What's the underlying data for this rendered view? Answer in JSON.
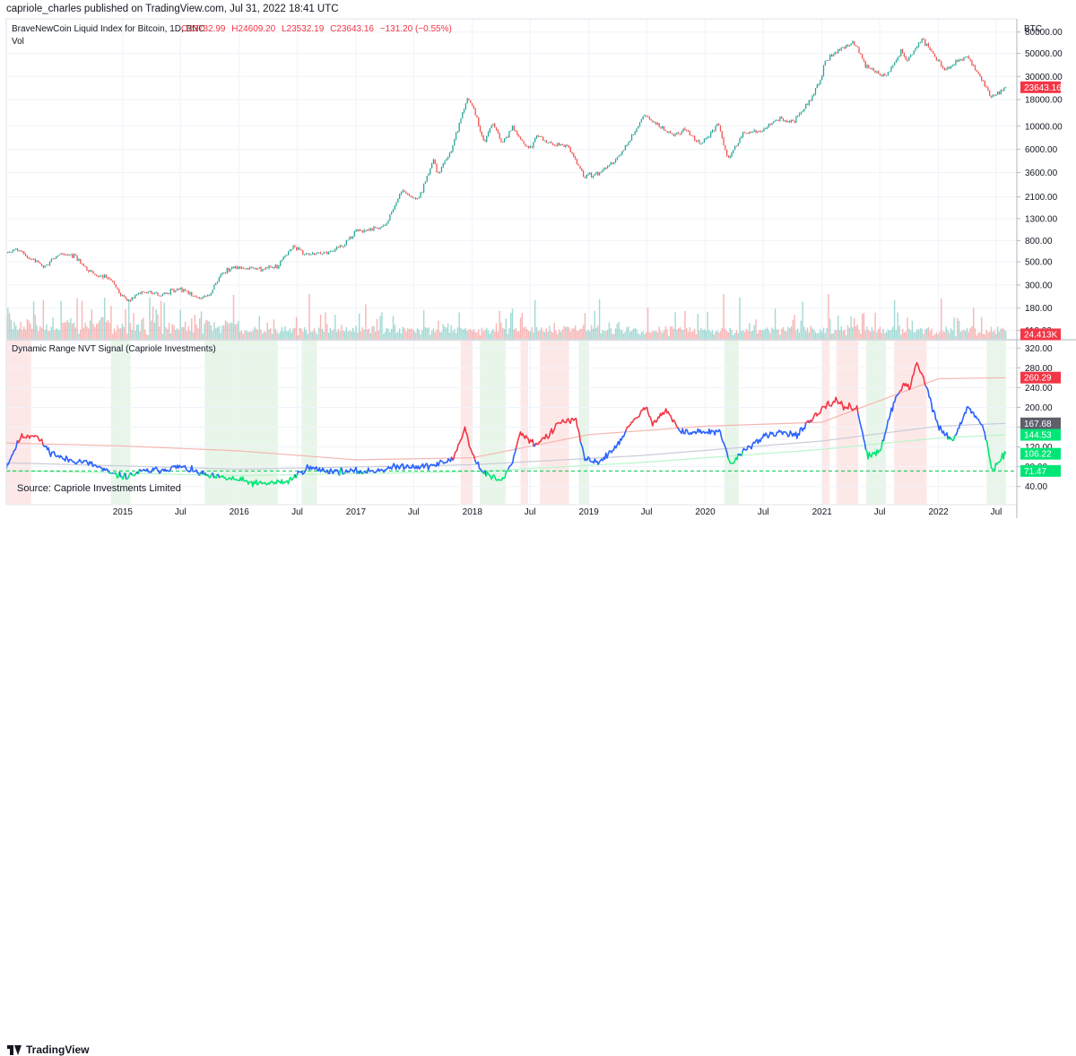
{
  "header": {
    "published": "capriole_charles published on TradingView.com, Jul 31, 2022 18:41 UTC"
  },
  "footer": {
    "logo_text": "TradingView"
  },
  "colors": {
    "up": "#26a69a",
    "down": "#ef5350",
    "ind_blue": "#2962ff",
    "ind_red": "#f23645",
    "ind_green": "#00e676",
    "buy_zone": "#e8f5e9",
    "sell_zone": "#fde8e8"
  },
  "chart_data": [
    {
      "type": "line",
      "chart_style": "candlestick",
      "scale": "log",
      "legend": {
        "symbol": "BraveNewCoin Liquid Index for Bitcoin, 1D, BNC",
        "open": "O23782.99",
        "high": "H24609.20",
        "low": "L23532.19",
        "close": "C23643.16",
        "change": "−131.20 (−0.55%)",
        "volume_label": "Vol"
      },
      "axis_unit": "BTC",
      "y_ticks": [
        80000,
        50000,
        30000,
        18000,
        10000,
        6000,
        3600,
        2100,
        1300,
        800,
        500,
        300,
        180,
        110
      ],
      "y_tick_labels": [
        "80000.00",
        "50000.00",
        "30000.00",
        "18000.00",
        "10000.00",
        "6000.00",
        "3600.00",
        "2100.00",
        "1300.00",
        "800.00",
        "500.00",
        "300.00",
        "180.00",
        "110.00"
      ],
      "ylim": [
        95,
        105000
      ],
      "price_badge": {
        "value": 23643.16,
        "label": "23643.16"
      },
      "volume_badge": {
        "label": "24.413K"
      },
      "price_series": [
        [
          "2014-01-01",
          600
        ],
        [
          "2014-02-01",
          660
        ],
        [
          "2014-03-15",
          540
        ],
        [
          "2014-05-01",
          450
        ],
        [
          "2014-06-15",
          600
        ],
        [
          "2014-08-01",
          580
        ],
        [
          "2014-10-01",
          380
        ],
        [
          "2014-11-15",
          360
        ],
        [
          "2015-01-15",
          210
        ],
        [
          "2015-03-01",
          260
        ],
        [
          "2015-05-01",
          240
        ],
        [
          "2015-07-01",
          280
        ],
        [
          "2015-08-20",
          230
        ],
        [
          "2015-10-01",
          240
        ],
        [
          "2015-11-05",
          390
        ],
        [
          "2015-12-15",
          440
        ],
        [
          "2016-03-01",
          430
        ],
        [
          "2016-05-01",
          450
        ],
        [
          "2016-06-15",
          720
        ],
        [
          "2016-08-01",
          580
        ],
        [
          "2016-10-01",
          620
        ],
        [
          "2016-12-01",
          760
        ],
        [
          "2017-01-05",
          1000
        ],
        [
          "2017-02-15",
          1000
        ],
        [
          "2017-04-01",
          1080
        ],
        [
          "2017-05-25",
          2400
        ],
        [
          "2017-07-15",
          1950
        ],
        [
          "2017-09-01",
          4800
        ],
        [
          "2017-09-15",
          3400
        ],
        [
          "2017-11-01",
          6500
        ],
        [
          "2017-12-17",
          19500
        ],
        [
          "2018-01-15",
          12000
        ],
        [
          "2018-02-06",
          7000
        ],
        [
          "2018-03-05",
          11000
        ],
        [
          "2018-04-05",
          6800
        ],
        [
          "2018-05-05",
          9700
        ],
        [
          "2018-06-28",
          5900
        ],
        [
          "2018-07-25",
          8200
        ],
        [
          "2018-09-15",
          6500
        ],
        [
          "2018-11-01",
          6300
        ],
        [
          "2018-12-15",
          3300
        ],
        [
          "2019-02-01",
          3500
        ],
        [
          "2019-04-05",
          5000
        ],
        [
          "2019-06-26",
          12900
        ],
        [
          "2019-08-01",
          10500
        ],
        [
          "2019-09-25",
          8200
        ],
        [
          "2019-10-26",
          9400
        ],
        [
          "2019-12-17",
          6700
        ],
        [
          "2020-02-12",
          10300
        ],
        [
          "2020-03-12",
          4800
        ],
        [
          "2020-05-01",
          8700
        ],
        [
          "2020-07-01",
          9200
        ],
        [
          "2020-08-15",
          11800
        ],
        [
          "2020-10-01",
          10700
        ],
        [
          "2020-11-15",
          16000
        ],
        [
          "2020-12-31",
          29000
        ],
        [
          "2021-01-08",
          41000
        ],
        [
          "2021-02-20",
          55000
        ],
        [
          "2021-04-14",
          63500
        ],
        [
          "2021-05-20",
          37000
        ],
        [
          "2021-07-20",
          30000
        ],
        [
          "2021-09-06",
          52000
        ],
        [
          "2021-09-25",
          42000
        ],
        [
          "2021-11-10",
          68000
        ],
        [
          "2022-01-22",
          35000
        ],
        [
          "2022-03-28",
          47500
        ],
        [
          "2022-05-10",
          30000
        ],
        [
          "2022-06-18",
          18900
        ],
        [
          "2022-07-31",
          23643
        ]
      ]
    },
    {
      "type": "line",
      "title": "Dynamic Range NVT Signal (Capriole Investments)",
      "source_text": "Source: Capriole Investments Limited",
      "y_ticks": [
        320,
        280,
        240,
        200,
        160,
        120,
        80,
        40
      ],
      "y_tick_labels": [
        "320.00",
        "280.00",
        "240.00",
        "200.00",
        "160.00",
        "120.00",
        "80.00",
        "40.00"
      ],
      "ylim": [
        5,
        335
      ],
      "badges": [
        {
          "label": "260.29",
          "value": 260.29,
          "color": "#f23645"
        },
        {
          "label": "167.68",
          "value": 167.68,
          "color": "#5d606b"
        },
        {
          "label": "144.53",
          "value": 144.53,
          "color": "#00e676"
        },
        {
          "label": "106.22",
          "value": 106.22,
          "color": "#00e676"
        },
        {
          "label": "71.47",
          "value": 71.47,
          "color": "#00e676"
        }
      ],
      "threshold": 71.47,
      "nvt_series": [
        [
          "2014-01-01",
          80
        ],
        [
          "2014-02-15",
          140
        ],
        [
          "2014-04-01",
          145
        ],
        [
          "2014-05-15",
          112
        ],
        [
          "2014-07-01",
          95
        ],
        [
          "2014-09-01",
          90
        ],
        [
          "2014-10-15",
          80
        ],
        [
          "2014-12-01",
          64
        ],
        [
          "2015-01-15",
          60
        ],
        [
          "2015-03-01",
          70
        ],
        [
          "2015-05-01",
          74
        ],
        [
          "2015-07-01",
          80
        ],
        [
          "2015-08-15",
          70
        ],
        [
          "2015-10-01",
          60
        ],
        [
          "2015-12-15",
          55
        ],
        [
          "2016-03-01",
          45
        ],
        [
          "2016-06-01",
          50
        ],
        [
          "2016-08-01",
          78
        ],
        [
          "2016-10-01",
          72
        ],
        [
          "2016-12-01",
          70
        ],
        [
          "2017-02-01",
          70
        ],
        [
          "2017-04-01",
          75
        ],
        [
          "2017-06-01",
          82
        ],
        [
          "2017-08-01",
          80
        ],
        [
          "2017-09-15",
          85
        ],
        [
          "2017-11-01",
          95
        ],
        [
          "2017-12-10",
          160
        ],
        [
          "2017-12-25",
          115
        ],
        [
          "2018-02-01",
          70
        ],
        [
          "2018-03-01",
          60
        ],
        [
          "2018-04-01",
          50
        ],
        [
          "2018-05-01",
          80
        ],
        [
          "2018-06-01",
          150
        ],
        [
          "2018-07-15",
          125
        ],
        [
          "2018-09-01",
          145
        ],
        [
          "2018-10-01",
          170
        ],
        [
          "2018-11-20",
          175
        ],
        [
          "2018-12-20",
          95
        ],
        [
          "2019-02-01",
          90
        ],
        [
          "2019-03-15",
          110
        ],
        [
          "2019-05-01",
          155
        ],
        [
          "2019-06-26",
          200
        ],
        [
          "2019-07-20",
          170
        ],
        [
          "2019-09-01",
          195
        ],
        [
          "2019-10-15",
          150
        ],
        [
          "2019-12-15",
          150
        ],
        [
          "2020-02-15",
          150
        ],
        [
          "2020-03-20",
          85
        ],
        [
          "2020-05-15",
          120
        ],
        [
          "2020-07-01",
          140
        ],
        [
          "2020-09-01",
          150
        ],
        [
          "2020-10-15",
          145
        ],
        [
          "2020-12-01",
          175
        ],
        [
          "2021-01-10",
          200
        ],
        [
          "2021-02-15",
          215
        ],
        [
          "2021-03-15",
          200
        ],
        [
          "2021-04-20",
          200
        ],
        [
          "2021-05-25",
          100
        ],
        [
          "2021-07-01",
          110
        ],
        [
          "2021-08-15",
          210
        ],
        [
          "2021-09-15",
          250
        ],
        [
          "2021-10-05",
          240
        ],
        [
          "2021-10-25",
          290
        ],
        [
          "2021-11-20",
          250
        ],
        [
          "2022-01-01",
          160
        ],
        [
          "2022-02-15",
          130
        ],
        [
          "2022-04-01",
          200
        ],
        [
          "2022-05-15",
          170
        ],
        [
          "2022-06-01",
          130
        ],
        [
          "2022-06-20",
          70
        ],
        [
          "2022-07-31",
          106
        ]
      ],
      "upper_band_series": [
        [
          "2014-01-01",
          128
        ],
        [
          "2015-01-01",
          122
        ],
        [
          "2016-01-01",
          112
        ],
        [
          "2017-01-01",
          94
        ],
        [
          "2018-01-01",
          98
        ],
        [
          "2019-01-01",
          145
        ],
        [
          "2020-01-01",
          162
        ],
        [
          "2021-01-01",
          170
        ],
        [
          "2022-01-01",
          258
        ],
        [
          "2022-07-31",
          260
        ]
      ],
      "mid_band_series": [
        [
          "2014-01-01",
          88
        ],
        [
          "2016-01-01",
          75
        ],
        [
          "2018-01-01",
          84
        ],
        [
          "2019-06-01",
          102
        ],
        [
          "2021-01-01",
          132
        ],
        [
          "2022-01-01",
          162
        ],
        [
          "2022-07-31",
          167.7
        ]
      ],
      "lower_band_series": [
        [
          "2014-01-01",
          72
        ],
        [
          "2016-01-01",
          62
        ],
        [
          "2018-01-01",
          70
        ],
        [
          "2019-06-01",
          88
        ],
        [
          "2021-01-01",
          115
        ],
        [
          "2022-01-01",
          138
        ],
        [
          "2022-07-31",
          144.5
        ]
      ],
      "sell_zones": [
        [
          "2014-01-01",
          "2014-03-20"
        ],
        [
          "2017-11-25",
          "2017-12-31"
        ],
        [
          "2018-06-01",
          "2018-06-25"
        ],
        [
          "2018-08-01",
          "2018-10-31"
        ],
        [
          "2021-01-01",
          "2021-01-25"
        ],
        [
          "2021-02-15",
          "2021-04-25"
        ],
        [
          "2021-08-15",
          "2021-11-25"
        ]
      ],
      "buy_zones": [
        [
          "2014-11-25",
          "2015-01-25"
        ],
        [
          "2015-09-15",
          "2016-05-01"
        ],
        [
          "2016-07-15",
          "2016-09-01"
        ],
        [
          "2018-01-25",
          "2018-04-15"
        ],
        [
          "2018-12-01",
          "2018-12-31"
        ],
        [
          "2020-03-01",
          "2020-04-15"
        ],
        [
          "2021-05-20",
          "2021-07-20"
        ],
        [
          "2022-06-01",
          "2022-07-31"
        ]
      ]
    }
  ],
  "x_axis": {
    "date_range": [
      "2014-01-01",
      "2022-08-15"
    ],
    "ticks": [
      {
        "date": "2015-01-01",
        "label": "2015"
      },
      {
        "date": "2015-07-01",
        "label": "Jul"
      },
      {
        "date": "2016-01-01",
        "label": "2016"
      },
      {
        "date": "2016-07-01",
        "label": "Jul"
      },
      {
        "date": "2017-01-01",
        "label": "2017"
      },
      {
        "date": "2017-07-01",
        "label": "Jul"
      },
      {
        "date": "2018-01-01",
        "label": "2018"
      },
      {
        "date": "2018-07-01",
        "label": "Jul"
      },
      {
        "date": "2019-01-01",
        "label": "2019"
      },
      {
        "date": "2019-07-01",
        "label": "Jul"
      },
      {
        "date": "2020-01-01",
        "label": "2020"
      },
      {
        "date": "2020-07-01",
        "label": "Jul"
      },
      {
        "date": "2021-01-01",
        "label": "2021"
      },
      {
        "date": "2021-07-01",
        "label": "Jul"
      },
      {
        "date": "2022-01-01",
        "label": "2022"
      },
      {
        "date": "2022-07-01",
        "label": "Jul"
      }
    ]
  }
}
